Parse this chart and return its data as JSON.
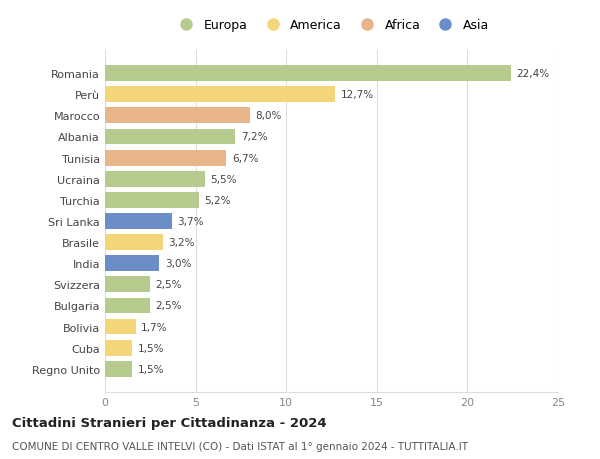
{
  "categories": [
    "Romania",
    "Perù",
    "Marocco",
    "Albania",
    "Tunisia",
    "Ucraina",
    "Turchia",
    "Sri Lanka",
    "Brasile",
    "India",
    "Svizzera",
    "Bulgaria",
    "Bolivia",
    "Cuba",
    "Regno Unito"
  ],
  "values": [
    22.4,
    12.7,
    8.0,
    7.2,
    6.7,
    5.5,
    5.2,
    3.7,
    3.2,
    3.0,
    2.5,
    2.5,
    1.7,
    1.5,
    1.5
  ],
  "labels": [
    "22,4%",
    "12,7%",
    "8,0%",
    "7,2%",
    "6,7%",
    "5,5%",
    "5,2%",
    "3,7%",
    "3,2%",
    "3,0%",
    "2,5%",
    "2,5%",
    "1,7%",
    "1,5%",
    "1,5%"
  ],
  "continents": [
    "Europa",
    "America",
    "Africa",
    "Europa",
    "Africa",
    "Europa",
    "Europa",
    "Asia",
    "America",
    "Asia",
    "Europa",
    "Europa",
    "America",
    "America",
    "Europa"
  ],
  "colors": {
    "Europa": "#b5cc8e",
    "America": "#f5d57a",
    "Africa": "#e8b48a",
    "Asia": "#6b8ec9"
  },
  "legend_labels": [
    "Europa",
    "America",
    "Africa",
    "Asia"
  ],
  "legend_colors": [
    "#b5cc8e",
    "#f5d57a",
    "#e8b48a",
    "#6b8ec9"
  ],
  "title": "Cittadini Stranieri per Cittadinanza - 2024",
  "subtitle": "COMUNE DI CENTRO VALLE INTELVI (CO) - Dati ISTAT al 1° gennaio 2024 - TUTTITALIA.IT",
  "xlim": [
    0,
    25
  ],
  "xticks": [
    0,
    5,
    10,
    15,
    20,
    25
  ],
  "background_color": "#ffffff",
  "grid_color": "#dddddd"
}
